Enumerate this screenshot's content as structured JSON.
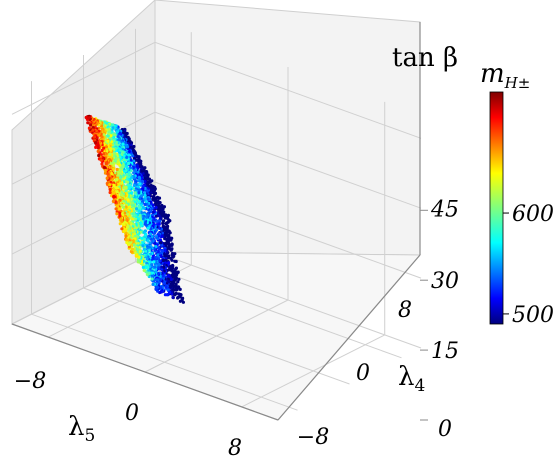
{
  "chart_data": {
    "type": "scatter",
    "projection": "3d",
    "xlabel": "λ5",
    "ylabel": "λ4",
    "zlabel": "tan β",
    "x_ticks": [
      "−8",
      "0",
      "8"
    ],
    "y_ticks": [
      "−8",
      "0",
      "8"
    ],
    "z_ticks": [
      "0",
      "15",
      "30",
      "45"
    ],
    "xlim": [
      -11,
      11
    ],
    "ylim": [
      -11,
      11
    ],
    "zlim": [
      0,
      50
    ],
    "colorbar": {
      "label": "m",
      "label_sub": "H±",
      "ticks": [
        "500",
        "600"
      ],
      "range": [
        490,
        720
      ],
      "colormap": "jet"
    },
    "grid": true,
    "point_cloud": {
      "lambda5_range": [
        -10,
        -4
      ],
      "lambda4_range": [
        4,
        9
      ],
      "tanbeta_range": [
        0,
        50
      ],
      "color_trend": "red at low λ5 / low λ4, blue at high λ4 edge"
    }
  },
  "colors": {
    "pane_left": "#ececec",
    "pane_back": "#f2f2f2",
    "pane_floor": "#f6f6f6",
    "grid": "#d0d0d0",
    "axis_line": "#8a8a8a"
  }
}
